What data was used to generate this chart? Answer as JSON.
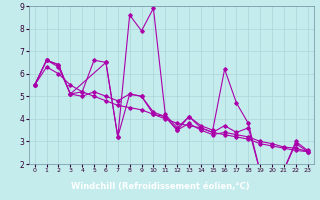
{
  "xlabel": "Windchill (Refroidissement éolien,°C)",
  "background_color": "#c5eced",
  "grid_color": "#aad4d8",
  "line_color": "#aa00aa",
  "xlabel_bg": "#7070b0",
  "xlabel_fg": "#ffffff",
  "xlim": [
    -0.5,
    23.5
  ],
  "ylim": [
    2,
    9
  ],
  "xticks": [
    0,
    1,
    2,
    3,
    4,
    5,
    6,
    7,
    8,
    9,
    10,
    11,
    12,
    13,
    14,
    15,
    16,
    17,
    18,
    19,
    20,
    21,
    22,
    23
  ],
  "yticks": [
    2,
    3,
    4,
    5,
    6,
    7,
    8,
    9
  ],
  "line1_x": [
    0,
    1,
    2,
    3,
    4,
    5,
    6,
    7,
    8,
    9,
    10,
    11,
    12,
    13,
    14,
    15,
    16,
    17,
    18,
    19,
    20,
    21,
    22,
    23
  ],
  "line1_y": [
    5.5,
    6.6,
    6.4,
    5.1,
    5.2,
    6.6,
    6.5,
    3.2,
    8.6,
    7.9,
    8.9,
    4.2,
    3.6,
    4.1,
    3.7,
    3.5,
    6.2,
    4.7,
    3.8,
    1.65,
    1.65,
    1.75,
    3.0,
    2.6
  ],
  "line2_x": [
    0,
    1,
    2,
    3,
    6,
    7,
    8,
    9,
    10,
    11,
    12,
    13,
    14,
    15,
    16,
    17,
    18,
    19,
    20,
    21,
    22,
    23
  ],
  "line2_y": [
    5.5,
    6.6,
    6.4,
    5.1,
    6.5,
    3.2,
    5.1,
    5.0,
    4.2,
    4.1,
    3.5,
    4.1,
    3.6,
    3.4,
    3.7,
    3.4,
    3.6,
    1.65,
    1.65,
    1.75,
    2.9,
    2.55
  ],
  "line3_x": [
    0,
    1,
    2,
    3,
    4,
    5,
    6,
    7,
    8,
    9,
    10,
    11,
    12,
    13,
    14,
    15,
    16,
    17,
    18,
    19,
    20,
    21,
    22,
    23
  ],
  "line3_y": [
    5.5,
    6.6,
    6.3,
    5.1,
    5.0,
    5.2,
    5.0,
    4.8,
    5.1,
    5.0,
    4.3,
    4.1,
    3.5,
    3.8,
    3.5,
    3.3,
    3.4,
    3.3,
    3.2,
    3.0,
    2.9,
    2.75,
    2.7,
    2.55
  ],
  "line4_x": [
    0,
    1,
    2,
    3,
    4,
    5,
    6,
    7,
    8,
    9,
    10,
    11,
    12,
    13,
    14,
    15,
    16,
    17,
    18,
    19,
    20,
    21,
    22,
    23
  ],
  "line4_y": [
    5.5,
    6.3,
    6.0,
    5.5,
    5.2,
    5.0,
    4.8,
    4.6,
    4.5,
    4.4,
    4.2,
    4.0,
    3.8,
    3.7,
    3.6,
    3.4,
    3.3,
    3.2,
    3.1,
    2.9,
    2.8,
    2.7,
    2.6,
    2.55
  ]
}
